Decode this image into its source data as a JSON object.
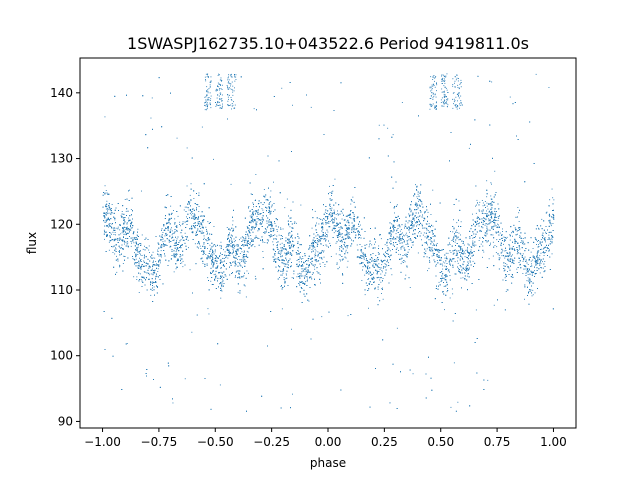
{
  "chart_data": {
    "type": "scatter",
    "title": "1SWASPJ162735.10+043522.6 Period 9419811.0s",
    "xlabel": "phase",
    "ylabel": "flux",
    "xlim": [
      -1.1,
      1.1
    ],
    "ylim": [
      89,
      145.3
    ],
    "xticks": [
      -1.0,
      -0.75,
      -0.5,
      -0.25,
      0.0,
      0.25,
      0.5,
      0.75,
      1.0
    ],
    "xtick_labels": [
      "−1.00",
      "−0.75",
      "−0.50",
      "−0.25",
      "0.00",
      "0.25",
      "0.50",
      "0.75",
      "1.00"
    ],
    "yticks": [
      90,
      100,
      110,
      120,
      130,
      140
    ],
    "ytick_labels": [
      "90",
      "100",
      "110",
      "120",
      "130",
      "140"
    ],
    "grid": false,
    "marker_color": "#1f77b4",
    "phase_range": [
      -1.0,
      1.0
    ],
    "baseline_flux": 117,
    "scatter_band": [
      110,
      124
    ],
    "outlier_range": [
      91,
      143
    ],
    "saturated_flux": [
      137.5,
      143
    ],
    "saturated_phase_bands": [
      [
        -0.55,
        -0.52
      ],
      [
        -0.5,
        -0.47
      ],
      [
        -0.45,
        -0.41
      ],
      [
        0.45,
        0.48
      ],
      [
        0.5,
        0.53
      ],
      [
        0.55,
        0.59
      ]
    ]
  }
}
